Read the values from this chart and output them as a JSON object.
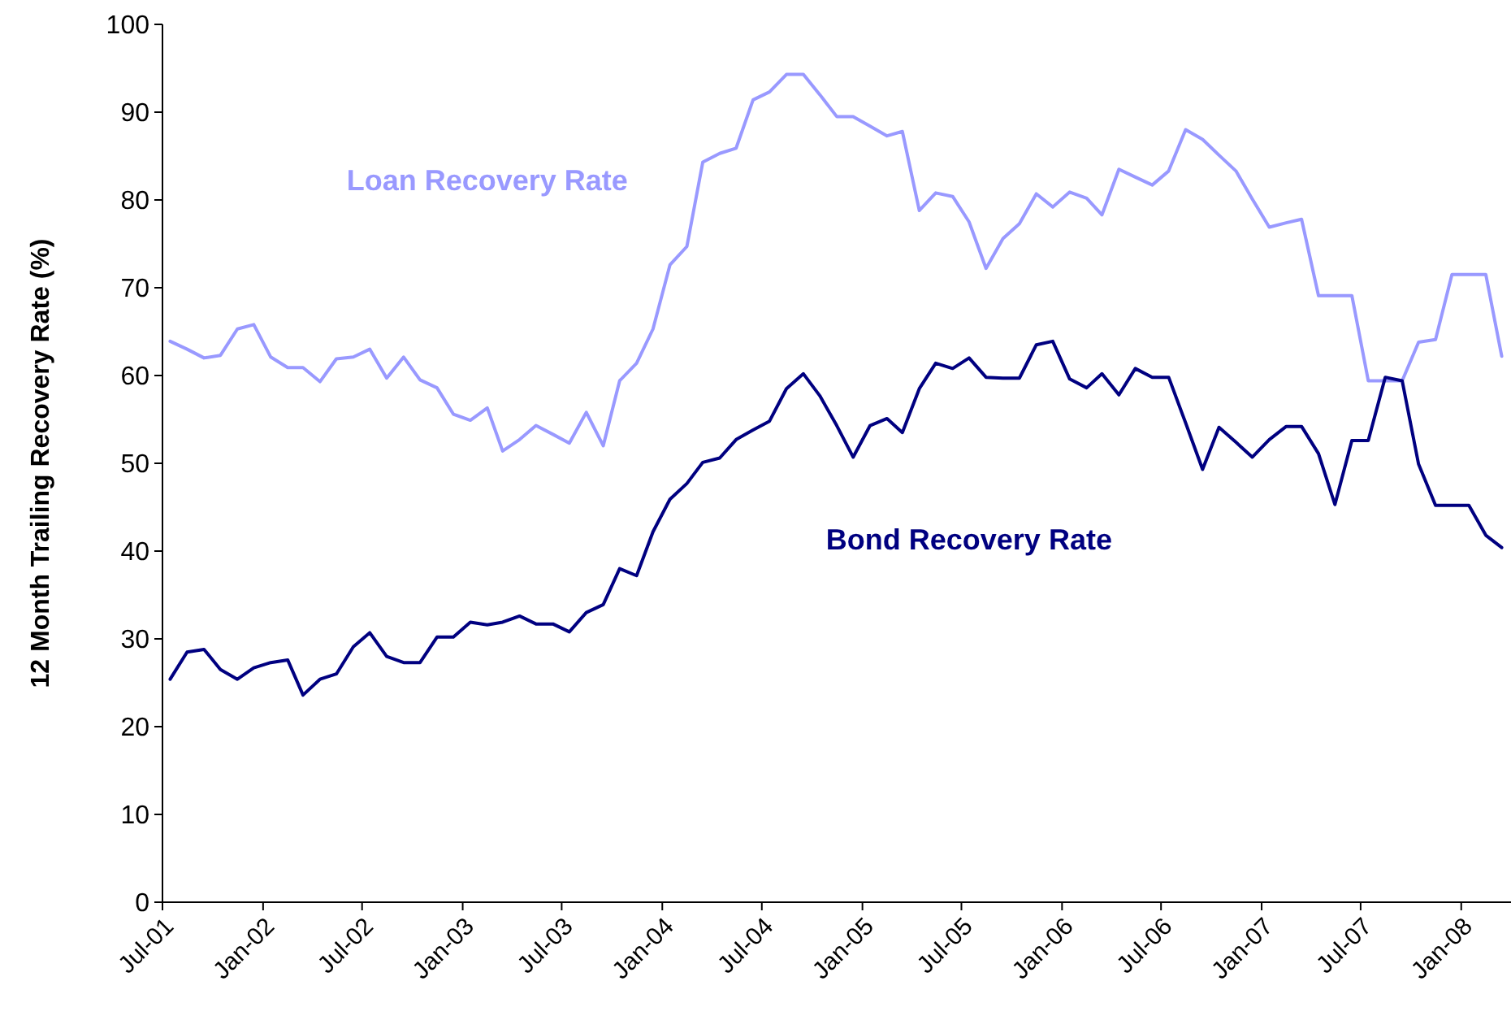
{
  "chart_data": {
    "type": "line",
    "ylabel": "12 Month Trailing Recovery Rate (%)",
    "x": [
      "2001-07-15",
      "2001-08-15",
      "2001-09-15",
      "2001-10-15",
      "2001-11-15",
      "2001-12-15",
      "2002-01-15",
      "2002-02-15",
      "2002-03-15",
      "2002-04-15",
      "2002-05-15",
      "2002-06-15",
      "2002-07-15",
      "2002-08-15",
      "2002-09-15",
      "2002-10-15",
      "2002-11-15",
      "2002-12-15",
      "2003-01-15",
      "2003-02-15",
      "2003-03-15",
      "2003-04-15",
      "2003-05-15",
      "2003-06-15",
      "2003-07-15",
      "2003-08-15",
      "2003-09-15",
      "2003-10-15",
      "2003-11-15",
      "2003-12-15",
      "2004-01-15",
      "2004-02-15",
      "2004-03-15",
      "2004-04-15",
      "2004-05-15",
      "2004-06-15",
      "2004-07-15",
      "2004-08-15",
      "2004-09-15",
      "2004-10-15",
      "2004-11-15",
      "2004-12-15",
      "2005-01-15",
      "2005-02-15",
      "2005-03-15",
      "2005-04-15",
      "2005-05-15",
      "2005-06-15",
      "2005-07-15",
      "2005-08-15",
      "2005-09-15",
      "2005-10-15",
      "2005-11-15",
      "2005-12-15",
      "2006-01-15",
      "2006-02-15",
      "2006-03-15",
      "2006-04-15",
      "2006-05-15",
      "2006-06-15",
      "2006-07-15",
      "2006-08-15",
      "2006-09-15",
      "2006-10-15",
      "2006-11-15",
      "2006-12-15",
      "2007-01-15",
      "2007-02-15",
      "2007-03-15",
      "2007-04-15",
      "2007-05-15",
      "2007-06-15",
      "2007-07-15",
      "2007-08-15",
      "2007-09-15",
      "2007-10-15",
      "2007-11-15",
      "2007-12-15",
      "2008-01-15",
      "2008-02-15",
      "2008-03-15"
    ],
    "series": [
      {
        "name": "Loan Recovery Rate",
        "color": "#9999ff",
        "values": [
          63.9,
          63.0,
          62.0,
          62.3,
          65.3,
          65.8,
          62.1,
          60.9,
          60.9,
          59.3,
          61.9,
          62.1,
          63.0,
          59.7,
          62.1,
          59.5,
          58.6,
          55.6,
          54.9,
          56.3,
          51.4,
          52.7,
          54.3,
          53.3,
          52.3,
          55.8,
          52.0,
          59.4,
          61.4,
          65.3,
          72.6,
          74.7,
          84.3,
          85.3,
          85.9,
          91.4,
          92.3,
          94.3,
          94.3,
          92.0,
          89.5,
          89.5,
          88.4,
          87.3,
          87.8,
          78.8,
          80.8,
          80.4,
          77.5,
          72.2,
          75.6,
          77.3,
          80.7,
          79.2,
          80.9,
          80.2,
          78.3,
          83.5,
          82.6,
          81.7,
          83.3,
          88.0,
          86.9,
          85.1,
          83.3,
          80.1,
          76.9,
          77.4,
          77.8,
          69.1,
          69.1,
          69.1,
          59.4,
          59.4,
          59.4,
          63.8,
          64.1,
          71.5,
          71.5,
          71.5,
          62.2
        ]
      },
      {
        "name": "Bond Recovery Rate",
        "color": "#000080",
        "values": [
          25.4,
          28.5,
          28.8,
          26.5,
          25.4,
          26.7,
          27.3,
          27.6,
          23.6,
          25.4,
          26.0,
          29.1,
          30.7,
          28.0,
          27.3,
          27.3,
          30.2,
          30.2,
          31.9,
          31.6,
          31.9,
          32.6,
          31.7,
          31.7,
          30.8,
          33.0,
          33.9,
          38.0,
          37.2,
          42.2,
          45.9,
          47.7,
          50.1,
          50.6,
          52.7,
          53.8,
          54.8,
          58.5,
          60.2,
          57.7,
          54.3,
          50.7,
          54.3,
          55.1,
          53.5,
          58.5,
          61.4,
          60.8,
          62.0,
          59.8,
          59.7,
          59.7,
          63.5,
          63.9,
          59.6,
          58.6,
          60.2,
          57.8,
          60.8,
          59.8,
          59.8,
          54.6,
          49.3,
          54.1,
          52.4,
          50.7,
          52.7,
          54.2,
          54.2,
          51.1,
          45.3,
          52.6,
          52.6,
          59.8,
          59.4,
          49.9,
          45.2,
          45.2,
          45.2,
          41.8,
          40.4
        ]
      }
    ],
    "xlim": [
      "2001-07-01",
      "2008-04-01"
    ],
    "xticks": [
      {
        "value": "2001-07-01",
        "label": "Jul-01"
      },
      {
        "value": "2002-01-01",
        "label": "Jan-02"
      },
      {
        "value": "2002-07-01",
        "label": "Jul-02"
      },
      {
        "value": "2003-01-01",
        "label": "Jan-03"
      },
      {
        "value": "2003-07-01",
        "label": "Jul-03"
      },
      {
        "value": "2004-01-01",
        "label": "Jan-04"
      },
      {
        "value": "2004-07-01",
        "label": "Jul-04"
      },
      {
        "value": "2005-01-01",
        "label": "Jan-05"
      },
      {
        "value": "2005-07-01",
        "label": "Jul-05"
      },
      {
        "value": "2006-01-01",
        "label": "Jan-06"
      },
      {
        "value": "2006-07-01",
        "label": "Jul-06"
      },
      {
        "value": "2007-01-01",
        "label": "Jan-07"
      },
      {
        "value": "2007-07-01",
        "label": "Jul-07"
      },
      {
        "value": "2008-01-01",
        "label": "Jan-08"
      }
    ],
    "ylim": [
      0,
      100
    ],
    "yticks": [
      0,
      10,
      20,
      30,
      40,
      50,
      60,
      70,
      80,
      90,
      100
    ],
    "grid": false,
    "legend": false,
    "marker": "none",
    "line_style": "solid"
  }
}
